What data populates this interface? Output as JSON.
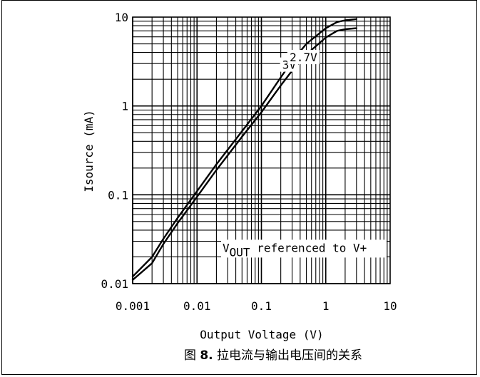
{
  "chart_data": {
    "type": "line",
    "title": "",
    "xlabel": "Output Voltage (V)",
    "ylabel": "Isource (mA)",
    "xscale": "log",
    "yscale": "log",
    "xlim": [
      0.001,
      10
    ],
    "ylim": [
      0.01,
      10
    ],
    "grid": true,
    "x_tick_labels": [
      "0.001",
      "0.01",
      "0.1",
      "1",
      "10"
    ],
    "y_tick_labels": [
      "0.01",
      "0.1",
      "1",
      "10"
    ],
    "annotation": {
      "prefix": "V",
      "subscript": "OUT",
      "suffix": " referenced to V+"
    },
    "series": [
      {
        "name": "3V",
        "x": [
          0.001,
          0.002,
          0.003,
          0.005,
          0.01,
          0.02,
          0.05,
          0.1,
          0.2,
          0.3,
          0.5,
          1.0,
          1.5,
          2.0,
          3.0
        ],
        "y": [
          0.012,
          0.02,
          0.032,
          0.055,
          0.11,
          0.22,
          0.52,
          1.0,
          2.1,
          3.2,
          5.0,
          7.5,
          8.8,
          9.2,
          9.5
        ]
      },
      {
        "name": "2.7V",
        "x": [
          0.001,
          0.002,
          0.003,
          0.005,
          0.01,
          0.02,
          0.05,
          0.1,
          0.2,
          0.3,
          0.5,
          1.0,
          1.5,
          2.0,
          3.0
        ],
        "y": [
          0.011,
          0.017,
          0.028,
          0.048,
          0.095,
          0.19,
          0.45,
          0.85,
          1.7,
          2.5,
          3.8,
          5.9,
          7.0,
          7.3,
          7.5
        ]
      }
    ]
  },
  "caption": {
    "prefix": "图 ",
    "number": "8.",
    "text": " 拉电流与输出电压间的关系"
  }
}
